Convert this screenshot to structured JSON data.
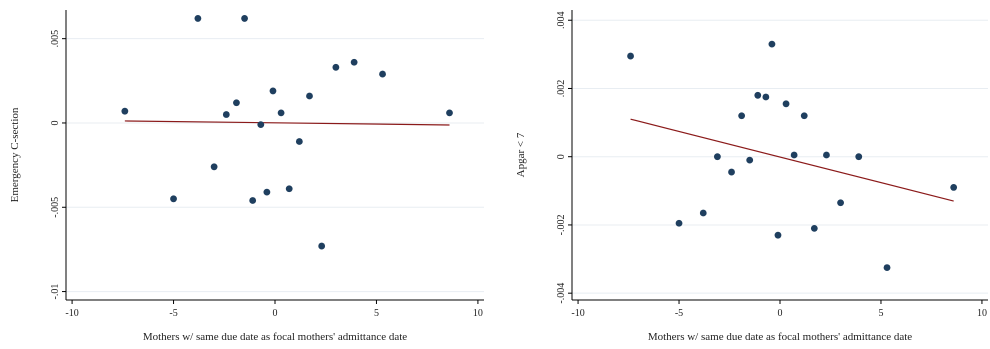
{
  "colors": {
    "points": "#1f3f5f",
    "fit_line": "#8b1a1a",
    "grid": "#e8edf2"
  },
  "chart_data": [
    {
      "type": "scatter",
      "title": "",
      "xlabel": "Mothers w/ same due date as focal mothers' admittance date",
      "ylabel": "Emergency C-section",
      "xlim": [
        -10.3,
        10.3
      ],
      "ylim": [
        -0.0105,
        0.0067
      ],
      "xticks": [
        -10,
        -5,
        0,
        5,
        10
      ],
      "xtick_labels": [
        "-10",
        "-5",
        "0",
        "5",
        "10"
      ],
      "yticks": [
        -0.01,
        -0.005,
        0,
        0.005
      ],
      "ytick_labels": [
        "-.01",
        "-.005",
        "0",
        ".005"
      ],
      "grid": true,
      "points": [
        {
          "x": -7.4,
          "y": 0.0007
        },
        {
          "x": -5.0,
          "y": -0.0045
        },
        {
          "x": -3.8,
          "y": 0.0062
        },
        {
          "x": -3.0,
          "y": -0.0026
        },
        {
          "x": -2.4,
          "y": 0.0005
        },
        {
          "x": -1.9,
          "y": 0.0012
        },
        {
          "x": -1.5,
          "y": 0.0062
        },
        {
          "x": -1.1,
          "y": -0.0046
        },
        {
          "x": -0.7,
          "y": -0.0001
        },
        {
          "x": -0.4,
          "y": -0.0041
        },
        {
          "x": -0.1,
          "y": 0.0019
        },
        {
          "x": 0.3,
          "y": 0.0006
        },
        {
          "x": 0.7,
          "y": -0.0039
        },
        {
          "x": 1.2,
          "y": -0.0011
        },
        {
          "x": 1.7,
          "y": 0.0016
        },
        {
          "x": 2.3,
          "y": -0.0073
        },
        {
          "x": 3.0,
          "y": 0.0033
        },
        {
          "x": 3.9,
          "y": 0.0036
        },
        {
          "x": 5.3,
          "y": 0.0029
        },
        {
          "x": 8.6,
          "y": 0.0006
        }
      ],
      "fit_line": {
        "x": [
          -7.4,
          8.6
        ],
        "y": [
          0.00012,
          -0.00012
        ]
      }
    },
    {
      "type": "scatter",
      "title": "",
      "xlabel": "Mothers w/ same due date as focal mothers' admittance date",
      "ylabel": "Apgar < 7",
      "xlim": [
        -10.3,
        10.3
      ],
      "ylim": [
        -0.0042,
        0.0043
      ],
      "xticks": [
        -10,
        -5,
        0,
        5,
        10
      ],
      "xtick_labels": [
        "-10",
        "-5",
        "0",
        "5",
        "10"
      ],
      "yticks": [
        -0.004,
        -0.002,
        0,
        0.002,
        0.004
      ],
      "ytick_labels": [
        "-.004",
        "-.002",
        "0",
        ".002",
        ".004"
      ],
      "grid": true,
      "points": [
        {
          "x": -7.4,
          "y": 0.00295
        },
        {
          "x": -5.0,
          "y": -0.00195
        },
        {
          "x": -3.8,
          "y": -0.00165
        },
        {
          "x": -3.1,
          "y": 0.0
        },
        {
          "x": -2.4,
          "y": -0.00045
        },
        {
          "x": -1.9,
          "y": 0.0012
        },
        {
          "x": -1.5,
          "y": -0.0001
        },
        {
          "x": -1.1,
          "y": 0.0018
        },
        {
          "x": -0.7,
          "y": 0.00175
        },
        {
          "x": -0.4,
          "y": 0.0033
        },
        {
          "x": -0.1,
          "y": -0.0023
        },
        {
          "x": 0.3,
          "y": 0.00155
        },
        {
          "x": 0.7,
          "y": 5e-05
        },
        {
          "x": 1.2,
          "y": 0.0012
        },
        {
          "x": 1.7,
          "y": -0.0021
        },
        {
          "x": 2.3,
          "y": 5e-05
        },
        {
          "x": 3.0,
          "y": -0.00135
        },
        {
          "x": 3.9,
          "y": 0.0
        },
        {
          "x": 5.3,
          "y": -0.00325
        },
        {
          "x": 8.6,
          "y": -0.0009
        }
      ],
      "fit_line": {
        "x": [
          -7.4,
          8.6
        ],
        "y": [
          0.0011,
          -0.0013
        ]
      }
    }
  ]
}
